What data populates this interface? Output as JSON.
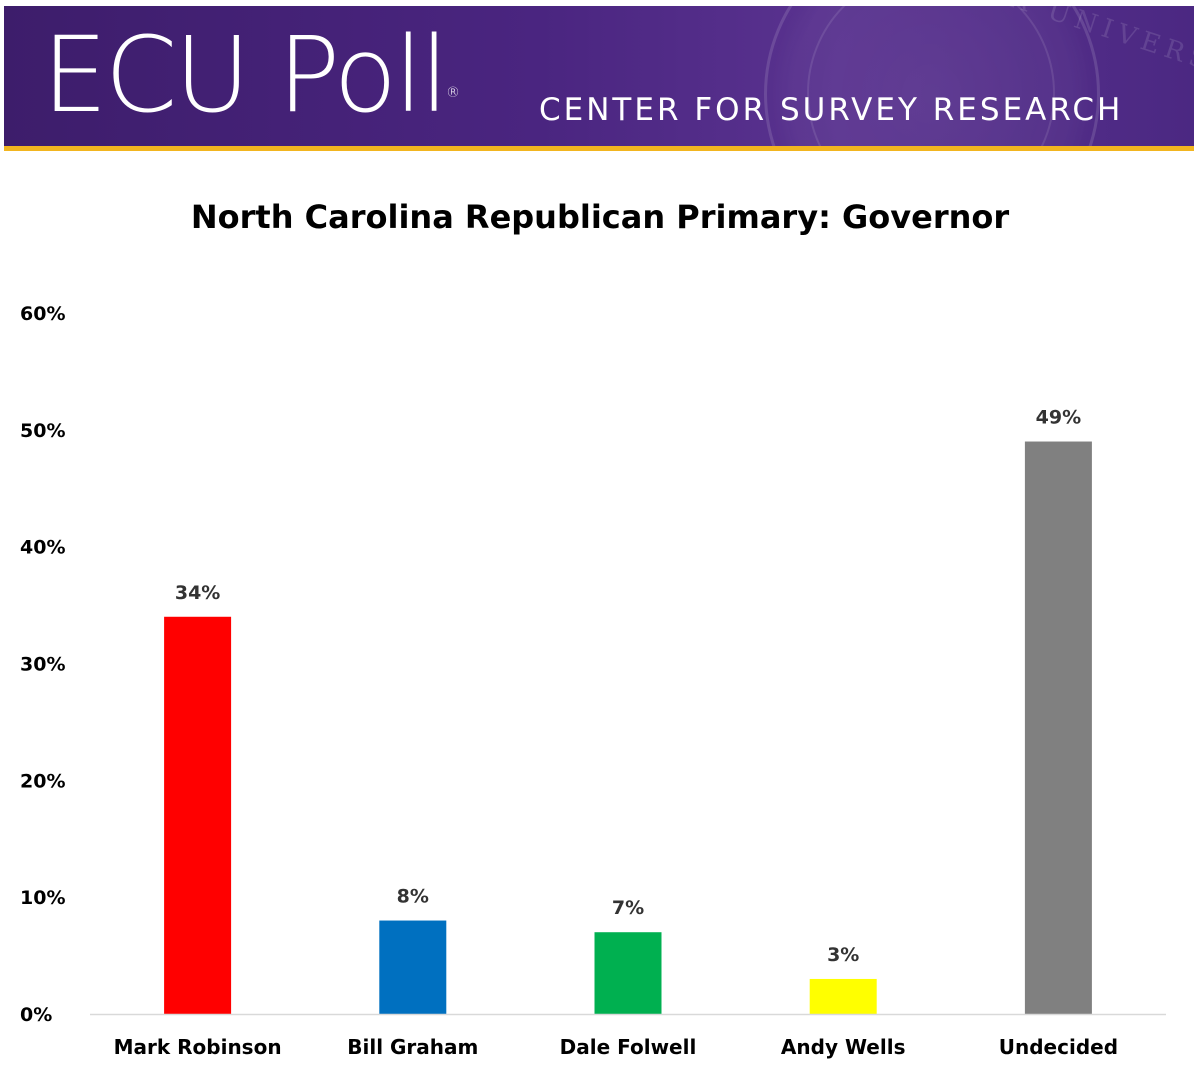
{
  "header": {
    "logo_text": "ECU Poll",
    "logo_mark": "®",
    "subtitle": "CENTER FOR SURVEY RESEARCH",
    "seal_text": "CAROLINA UNIVERSITY",
    "colors": {
      "banner": "#4a2580",
      "stripe": "#f2b51f"
    }
  },
  "chart_data": {
    "type": "bar",
    "title": "North Carolina Republican Primary: Governor",
    "xlabel": "",
    "ylabel": "",
    "ylim": [
      0,
      60
    ],
    "yticks": [
      0,
      10,
      20,
      30,
      40,
      50,
      60
    ],
    "ytick_labels": [
      "0%",
      "10%",
      "20%",
      "30%",
      "40%",
      "50%",
      "60%"
    ],
    "grid": false,
    "legend": "none",
    "categories": [
      "Mark Robinson",
      "Bill Graham",
      "Dale Folwell",
      "Andy Wells",
      "Undecided"
    ],
    "values": [
      34,
      8,
      7,
      3,
      49
    ],
    "value_labels": [
      "34%",
      "8%",
      "7%",
      "3%",
      "49%"
    ],
    "colors": [
      "#ff0000",
      "#0070c0",
      "#00b050",
      "#ffff00",
      "#808080"
    ]
  }
}
